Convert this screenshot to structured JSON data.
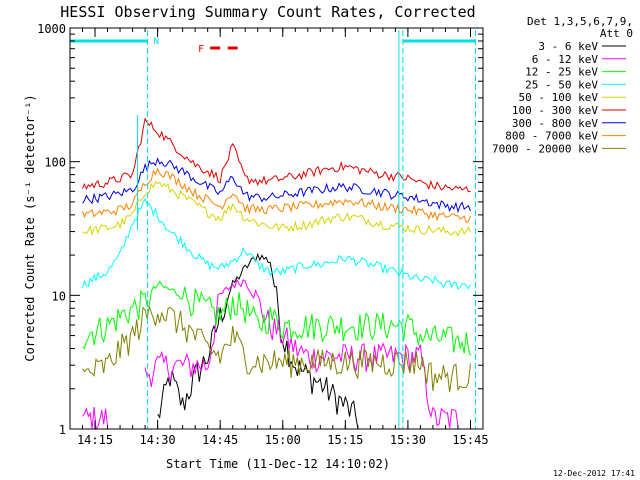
{
  "chart_data": {
    "type": "line",
    "title": "HESSI Observing Summary Count Rates, Corrected",
    "xlabel": "Start Time (11-Dec-12 14:10:02)",
    "ylabel": "Corrected Count Rate (s⁻¹ detector⁻¹)",
    "ylog": true,
    "ylim": [
      1,
      1000
    ],
    "xlim": [
      14.15,
      15.8
    ],
    "y_tick_labels": [
      "1",
      "10",
      "100",
      "1000"
    ],
    "x_tick_labels": [
      "14:15",
      "14:30",
      "14:45",
      "15:00",
      "15:15",
      "15:30",
      "15:45"
    ],
    "x_tick_values": [
      14.25,
      14.5,
      14.75,
      15.0,
      15.25,
      15.5,
      15.75
    ],
    "legend_header": [
      "Det 1,3,5,6,7,9,",
      "Att 0"
    ],
    "legend_position": "right",
    "timestamp": "12-Dec-2012 17:41",
    "annotations": [
      {
        "label": "N",
        "color": "#00e0e0",
        "intervals": [
          [
            14.15,
            14.46
          ],
          [
            15.48,
            15.77
          ]
        ]
      },
      {
        "label": "F",
        "color": "#e00000",
        "intervals": [
          [
            14.71,
            14.75
          ],
          [
            14.78,
            14.82
          ]
        ]
      }
    ],
    "night_markers": [
      14.46,
      15.48,
      15.77
    ],
    "x": [
      14.2,
      14.3,
      14.35,
      14.4,
      14.45,
      14.5,
      14.55,
      14.6,
      14.65,
      14.7,
      14.75,
      14.8,
      14.85,
      14.9,
      14.95,
      15.0,
      15.05,
      15.1,
      15.15,
      15.2,
      15.25,
      15.3,
      15.35,
      15.4,
      15.45,
      15.5,
      15.55,
      15.6,
      15.65,
      15.7,
      15.75
    ],
    "series": [
      {
        "name": "3 - 6 keV",
        "color": "#000000",
        "values": [
          null,
          null,
          null,
          null,
          null,
          1.2,
          2.5,
          1.5,
          2.5,
          3.5,
          7,
          12,
          16,
          20,
          18,
          5,
          3,
          2.5,
          2.2,
          1.8,
          1.5,
          1.2,
          null,
          null,
          null,
          null,
          null,
          null,
          null,
          null,
          null
        ]
      },
      {
        "name": "6 - 12 keV",
        "color": "#ff00ff",
        "values": [
          1.2,
          1.2,
          null,
          null,
          2.5,
          3,
          3,
          3,
          3,
          3,
          10,
          12,
          13,
          9,
          6,
          5,
          4,
          3.5,
          3.5,
          3.5,
          3.5,
          3.5,
          3.5,
          3.5,
          3.5,
          3.5,
          3.5,
          1.2,
          1.2,
          1.2,
          null
        ]
      },
      {
        "name": "12 - 25 keV",
        "color": "#00ff00",
        "values": [
          5,
          6,
          7,
          8,
          9,
          12,
          11,
          10,
          9,
          8,
          7,
          9,
          8,
          6,
          7,
          6,
          6,
          6,
          6,
          6,
          6,
          6,
          6,
          6,
          6,
          6,
          5,
          4.8,
          4.8,
          4.5,
          4.5
        ]
      },
      {
        "name": "25 - 50 keV",
        "color": "#00ffff",
        "values": [
          12,
          15,
          20,
          35,
          50,
          40,
          30,
          25,
          20,
          17,
          16,
          18,
          22,
          17,
          15,
          15,
          16,
          17,
          17,
          18,
          19,
          18,
          17,
          16,
          15,
          14,
          13,
          13,
          12,
          12,
          12
        ]
      },
      {
        "name": "50 - 100 keV",
        "color": "#d4d400",
        "values": [
          30,
          32,
          34,
          40,
          60,
          70,
          62,
          55,
          48,
          42,
          38,
          48,
          38,
          35,
          33,
          32,
          33,
          34,
          36,
          38,
          39,
          38,
          36,
          34,
          33,
          32,
          31,
          31,
          30,
          30,
          30
        ]
      },
      {
        "name": "100 - 300 keV",
        "color": "#e00000",
        "values": [
          65,
          70,
          75,
          80,
          200,
          170,
          140,
          115,
          95,
          85,
          75,
          130,
          75,
          72,
          72,
          75,
          78,
          82,
          86,
          90,
          92,
          88,
          84,
          80,
          78,
          75,
          70,
          66,
          64,
          62,
          62
        ]
      },
      {
        "name": "300 - 800 keV",
        "color": "#0000e0",
        "values": [
          52,
          55,
          58,
          62,
          90,
          105,
          95,
          85,
          74,
          65,
          58,
          78,
          56,
          54,
          54,
          56,
          58,
          60,
          62,
          64,
          65,
          63,
          61,
          59,
          56,
          55,
          52,
          49,
          47,
          46,
          46
        ]
      },
      {
        "name": "800 - 7000 keV",
        "color": "#ff8000",
        "values": [
          40,
          42,
          44,
          48,
          70,
          88,
          78,
          68,
          58,
          52,
          46,
          60,
          45,
          44,
          44,
          45,
          46,
          47,
          48,
          50,
          51,
          50,
          48,
          46,
          45,
          44,
          42,
          40,
          39,
          38,
          38
        ]
      },
      {
        "name": "7000 - 20000 keV",
        "color": "#808000",
        "values": [
          2.5,
          3,
          4,
          5,
          7,
          8,
          7,
          6,
          5,
          4,
          3.5,
          5,
          3.5,
          3.2,
          3.2,
          3.2,
          3.2,
          3.2,
          3.2,
          3.2,
          3.2,
          3.2,
          3.2,
          3.2,
          3.2,
          3.2,
          3.2,
          2.5,
          2.5,
          2.5,
          2.5
        ]
      }
    ]
  }
}
